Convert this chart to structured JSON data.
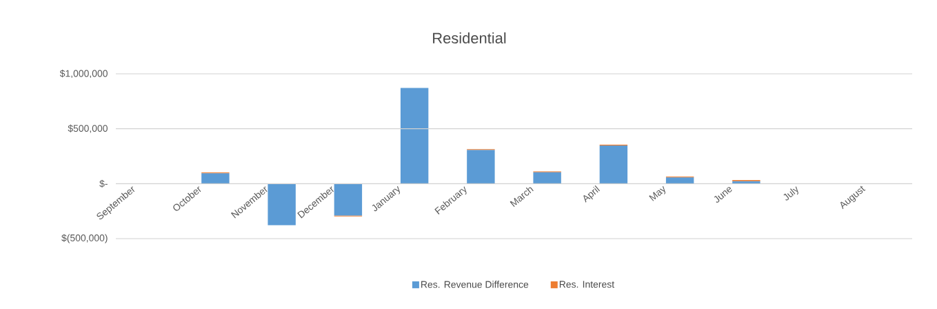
{
  "chart_data": {
    "type": "bar",
    "title": "Residential",
    "stacked": true,
    "categories": [
      "September",
      "October",
      "November",
      "December",
      "January",
      "February",
      "March",
      "April",
      "May",
      "June",
      "July",
      "August"
    ],
    "series": [
      {
        "name": "Res. Revenue Difference",
        "color": "#5b9bd5",
        "values": [
          0,
          95000,
          -377000,
          -290000,
          872000,
          306000,
          104000,
          347000,
          57000,
          22000,
          0,
          0
        ]
      },
      {
        "name": "Res. Interest",
        "color": "#ed7d31",
        "values": [
          0,
          7000,
          0,
          -8000,
          0,
          8000,
          8000,
          8000,
          8000,
          11000,
          0,
          0
        ]
      }
    ],
    "ylim": [
      -500000,
      1000000
    ],
    "yticks": [
      {
        "value": -500000,
        "label": "$(500,000)"
      },
      {
        "value": 0,
        "label": "$-"
      },
      {
        "value": 500000,
        "label": "$500,000"
      },
      {
        "value": 1000000,
        "label": "$1,000,000"
      }
    ],
    "grid": "y",
    "legend": "bottom"
  }
}
